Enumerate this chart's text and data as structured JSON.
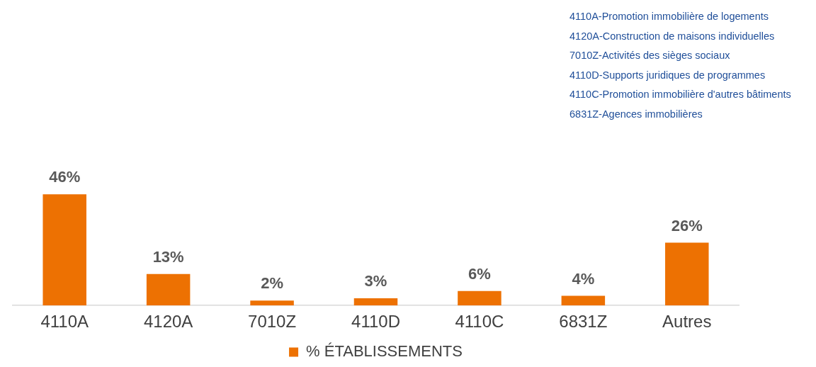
{
  "chart_data": {
    "type": "bar",
    "categories": [
      "4110A",
      "4120A",
      "7010Z",
      "4110D",
      "4110C",
      "6831Z",
      "Autres"
    ],
    "series": [
      {
        "name": "% ÉTABLISSEMENTS",
        "color": "#ed7102",
        "values": [
          46,
          13,
          2,
          3,
          6,
          4,
          26
        ],
        "value_labels": [
          "46%",
          "13%",
          "2%",
          "3%",
          "6%",
          "4%",
          "26%"
        ]
      }
    ],
    "annotations": [
      "4110A-Promotion immobilière de logements",
      "4120A-Construction de maisons individuelles",
      "7010Z-Activités des sièges sociaux",
      "4110D-Supports juridiques de programmes",
      "4110C-Promotion immobilière d'autres bâtiments",
      "6831Z-Agences immobilières"
    ],
    "legend": "bottom",
    "grid": false
  }
}
